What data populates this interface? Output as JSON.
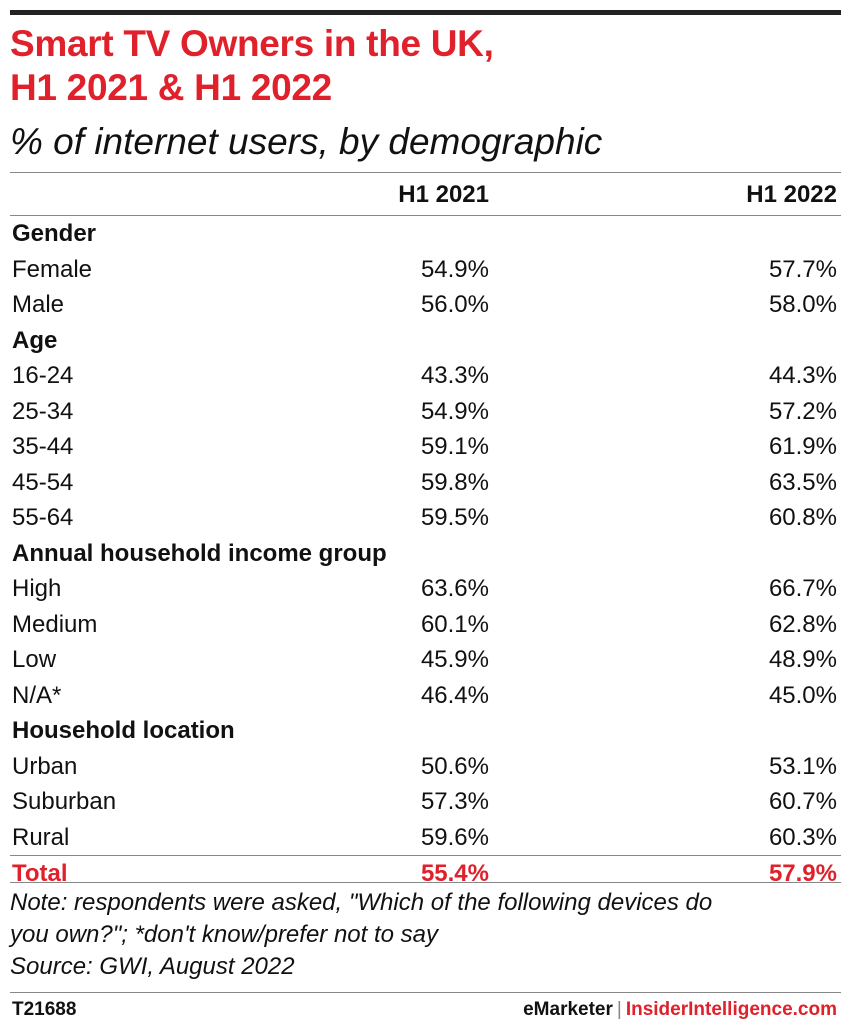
{
  "header": {
    "title_line1": "Smart TV Owners in the UK,",
    "title_line2": "H1 2021 & H1 2022",
    "subtitle": "% of internet users, by demographic"
  },
  "chart_data": {
    "type": "table",
    "columns": [
      "",
      "H1 2021",
      "H1 2022"
    ],
    "rows": [
      {
        "label": "Gender",
        "group": true
      },
      {
        "label": "Female",
        "h1_2021": "54.9%",
        "h1_2022": "57.7%"
      },
      {
        "label": "Male",
        "h1_2021": "56.0%",
        "h1_2022": "58.0%"
      },
      {
        "label": "Age",
        "group": true
      },
      {
        "label": "16-24",
        "h1_2021": "43.3%",
        "h1_2022": "44.3%"
      },
      {
        "label": "25-34",
        "h1_2021": "54.9%",
        "h1_2022": "57.2%"
      },
      {
        "label": "35-44",
        "h1_2021": "59.1%",
        "h1_2022": "61.9%"
      },
      {
        "label": "45-54",
        "h1_2021": "59.8%",
        "h1_2022": "63.5%"
      },
      {
        "label": "55-64",
        "h1_2021": "59.5%",
        "h1_2022": "60.8%"
      },
      {
        "label": "Annual household income group",
        "group": true
      },
      {
        "label": "High",
        "h1_2021": "63.6%",
        "h1_2022": "66.7%"
      },
      {
        "label": "Medium",
        "h1_2021": "60.1%",
        "h1_2022": "62.8%"
      },
      {
        "label": "Low",
        "h1_2021": "45.9%",
        "h1_2022": "48.9%"
      },
      {
        "label": "N/A*",
        "h1_2021": "46.4%",
        "h1_2022": "45.0%"
      },
      {
        "label": "Household location",
        "group": true
      },
      {
        "label": "Urban",
        "h1_2021": "50.6%",
        "h1_2022": "53.1%"
      },
      {
        "label": "Suburban",
        "h1_2021": "57.3%",
        "h1_2022": "60.7%"
      },
      {
        "label": "Rural",
        "h1_2021": "59.6%",
        "h1_2022": "60.3%"
      },
      {
        "label": "Total",
        "h1_2021": "55.4%",
        "h1_2022": "57.9%",
        "total": true
      }
    ]
  },
  "notes": {
    "note_line1": "Note: respondents were asked, \"Which of the following devices do",
    "note_line2": "you own?\"; *don't know/prefer not to say",
    "source": "Source: GWI, August 2022"
  },
  "footer": {
    "code": "T21688",
    "brand_emarketer": "eMarketer",
    "brand_separator": "|",
    "brand_insider": "InsiderIntelligence.com"
  },
  "colors": {
    "accent": "#e0202a",
    "text": "#111111",
    "rule": "#888888"
  }
}
